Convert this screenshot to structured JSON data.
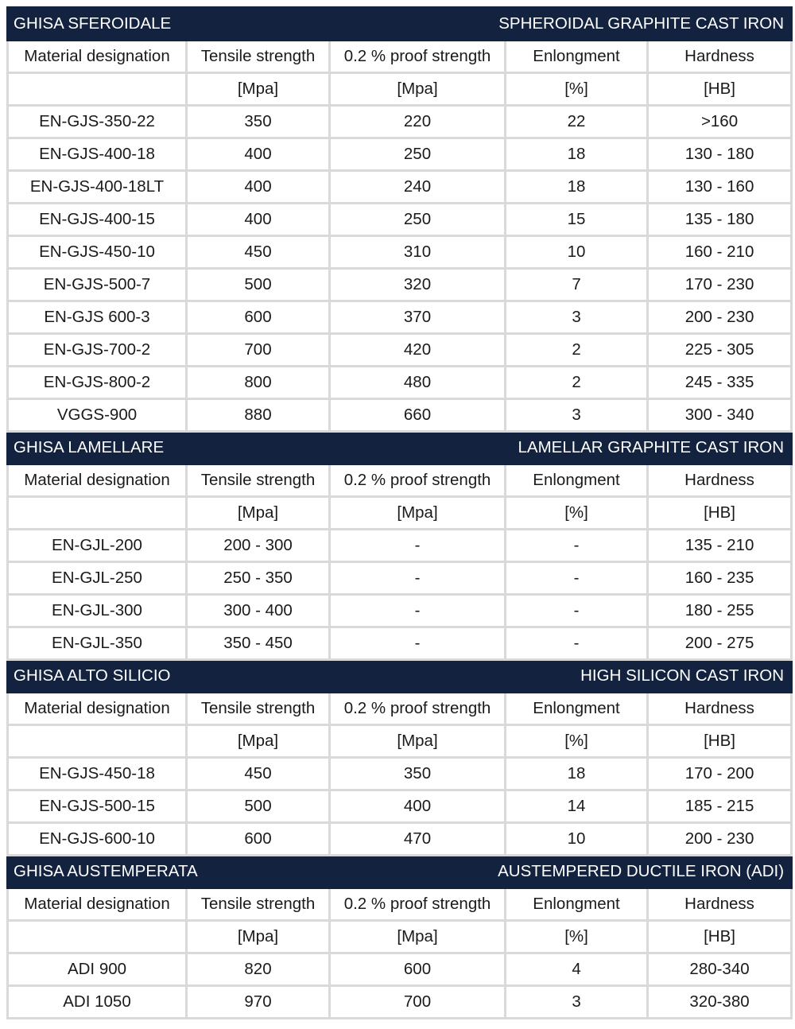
{
  "columns": [
    "Material designation",
    "Tensile strength",
    "0.2 % proof strength",
    "Enlongment",
    "Hardness"
  ],
  "units": [
    "",
    "[Mpa]",
    "[Mpa]",
    "[%]",
    "[HB]"
  ],
  "colors": {
    "section_header_bg": "#13233f",
    "grid": "#d9d9d9"
  },
  "sections": [
    {
      "title_it": "GHISA SFEROIDALE",
      "title_en": "SPHEROIDAL GRAPHITE CAST IRON",
      "rows": [
        [
          "EN-GJS-350-22",
          "350",
          "220",
          "22",
          ">160"
        ],
        [
          "EN-GJS-400-18",
          "400",
          "250",
          "18",
          "130 - 180"
        ],
        [
          "EN-GJS-400-18LT",
          "400",
          "240",
          "18",
          "130 - 160"
        ],
        [
          "EN-GJS-400-15",
          "400",
          "250",
          "15",
          "135 - 180"
        ],
        [
          "EN-GJS-450-10",
          "450",
          "310",
          "10",
          "160 - 210"
        ],
        [
          "EN-GJS-500-7",
          "500",
          "320",
          "7",
          "170 - 230"
        ],
        [
          "EN-GJS 600-3",
          "600",
          "370",
          "3",
          "200 - 230"
        ],
        [
          "EN-GJS-700-2",
          "700",
          "420",
          "2",
          "225 - 305"
        ],
        [
          "EN-GJS-800-2",
          "800",
          "480",
          "2",
          "245 - 335"
        ],
        [
          "VGGS-900",
          "880",
          "660",
          "3",
          "300 - 340"
        ]
      ]
    },
    {
      "title_it": "GHISA LAMELLARE",
      "title_en": "LAMELLAR GRAPHITE CAST IRON",
      "rows": [
        [
          "EN-GJL-200",
          "200 - 300",
          "-",
          "-",
          "135 - 210"
        ],
        [
          "EN-GJL-250",
          "250 - 350",
          "-",
          "-",
          "160 - 235"
        ],
        [
          "EN-GJL-300",
          "300 - 400",
          "-",
          "-",
          "180 - 255"
        ],
        [
          "EN-GJL-350",
          "350 - 450",
          "-",
          "-",
          "200 - 275"
        ]
      ]
    },
    {
      "title_it": "GHISA ALTO SILICIO",
      "title_en": "HIGH SILICON CAST IRON",
      "rows": [
        [
          "EN-GJS-450-18",
          "450",
          "350",
          "18",
          "170 - 200"
        ],
        [
          "EN-GJS-500-15",
          "500",
          "400",
          "14",
          "185 - 215"
        ],
        [
          "EN-GJS-600-10",
          "600",
          "470",
          "10",
          "200 - 230"
        ]
      ]
    },
    {
      "title_it": "GHISA AUSTEMPERATA",
      "title_en": "AUSTEMPERED DUCTILE IRON (ADI)",
      "rows": [
        [
          "ADI 900",
          "820",
          "600",
          "4",
          "280-340"
        ],
        [
          "ADI 1050",
          "970",
          "700",
          "3",
          "320-380"
        ]
      ]
    }
  ]
}
